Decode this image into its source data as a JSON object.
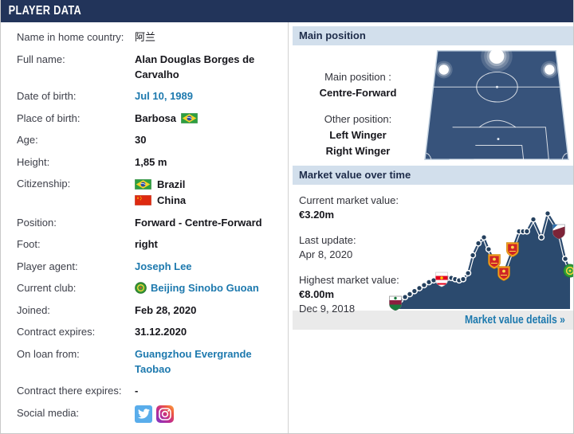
{
  "header": {
    "title": "PLAYER DATA"
  },
  "player_info": {
    "rows": [
      {
        "label": "Name in home country:",
        "type": "text",
        "value": "阿兰"
      },
      {
        "label": "Full name:",
        "type": "bold",
        "value": "Alan Douglas Borges de Carvalho"
      },
      {
        "label": "Date of birth:",
        "type": "link",
        "value": "Jul 10, 1989"
      },
      {
        "label": "Place of birth:",
        "type": "bold",
        "value": "Barbosa",
        "flag_after": "brazil"
      },
      {
        "label": "Age:",
        "type": "bold",
        "value": "30"
      },
      {
        "label": "Height:",
        "type": "bold",
        "value": "1,85 m"
      },
      {
        "label": "Citizenship:",
        "type": "flags",
        "values": [
          {
            "flag": "brazil",
            "name": "Brazil"
          },
          {
            "flag": "china",
            "name": "China"
          }
        ]
      },
      {
        "label": "Position:",
        "type": "bold",
        "value": "Forward - Centre-Forward"
      },
      {
        "label": "Foot:",
        "type": "bold",
        "value": "right"
      },
      {
        "label": "Player agent:",
        "type": "link",
        "value": "Joseph Lee"
      },
      {
        "label": "Current club:",
        "type": "club",
        "value": "Beijing Sinobo Guoan",
        "badge": "beijing-guoan"
      },
      {
        "label": "Joined:",
        "type": "bold",
        "value": "Feb 28, 2020"
      },
      {
        "label": "Contract expires:",
        "type": "bold",
        "value": "31.12.2020"
      },
      {
        "label": "On loan from:",
        "type": "link",
        "value": "Guangzhou Evergrande Taobao"
      },
      {
        "label": "Contract there expires:",
        "type": "bold",
        "value": "-"
      },
      {
        "label": "Social media:",
        "type": "social",
        "icons": [
          "twitter",
          "instagram"
        ]
      }
    ]
  },
  "main_position": {
    "title": "Main position",
    "main_label": "Main position :",
    "main_value": "Centre-Forward",
    "other_label": "Other position:",
    "other_values": [
      "Left Winger",
      "Right Winger"
    ]
  },
  "market_value": {
    "title": "Market value over time",
    "current_label": "Current market value:",
    "current_value": "€3.20m",
    "last_update_label": "Last update:",
    "last_update_value": "Apr 8, 2020",
    "highest_label": "Highest market value:",
    "highest_value": "€8.00m",
    "highest_date": "Dec 9, 2018",
    "details_link": "Market value details »"
  },
  "chart_data": {
    "type": "area",
    "title": "Market value over time",
    "unit": "€m",
    "ylim": [
      0,
      8.5
    ],
    "current_value_m": 3.2,
    "highest_value_m": 8.0,
    "highest_value_date": "Dec 9, 2018",
    "last_update": "Apr 8, 2020",
    "club_markers": [
      "fluminense",
      "red-bull-salzburg",
      "guangzhou-evergrande",
      "tianjin-tianhai",
      "beijing-guoan"
    ],
    "points": [
      [
        0,
        0.5,
        "fluminense"
      ],
      [
        2.7,
        0.75
      ],
      [
        5.5,
        1.0
      ],
      [
        8.2,
        1.25
      ],
      [
        10.9,
        1.5
      ],
      [
        13.7,
        1.75
      ],
      [
        16.4,
        2.0
      ],
      [
        19.2,
        2.25
      ],
      [
        21.9,
        2.4
      ],
      [
        26.5,
        2.5,
        "red-bull-salzburg"
      ],
      [
        29.7,
        2.6
      ],
      [
        32,
        2.6
      ],
      [
        34.2,
        2.5
      ],
      [
        36.5,
        2.4
      ],
      [
        38.8,
        2.5
      ],
      [
        41.6,
        3.0
      ],
      [
        44.3,
        4.5
      ],
      [
        47.5,
        5.5
      ],
      [
        50.7,
        6.0
      ],
      [
        53.4,
        5.0
      ],
      [
        56.6,
        4.0,
        "guangzhou-evergrande"
      ],
      [
        62.1,
        3.0,
        "guangzhou-evergrande"
      ],
      [
        67.1,
        5.0,
        "guangzhou-evergrande"
      ],
      [
        70.8,
        6.5
      ],
      [
        73.1,
        6.5
      ],
      [
        75.3,
        6.5
      ],
      [
        79,
        7.5
      ],
      [
        83.6,
        6.0
      ],
      [
        87.2,
        8.0
      ],
      [
        93.6,
        6.5,
        "tianjin-tianhai"
      ],
      [
        97.3,
        4.2
      ],
      [
        100,
        3.2,
        "beijing-guoan"
      ]
    ]
  },
  "colors": {
    "header_bg": "#22345a",
    "panel_header_bg": "#d2dfec",
    "link_blue": "#1d79ae",
    "chart_navy": "#2b4a6e",
    "pitch_fill": "#37537b",
    "footer_bg": "#eaeaea"
  }
}
